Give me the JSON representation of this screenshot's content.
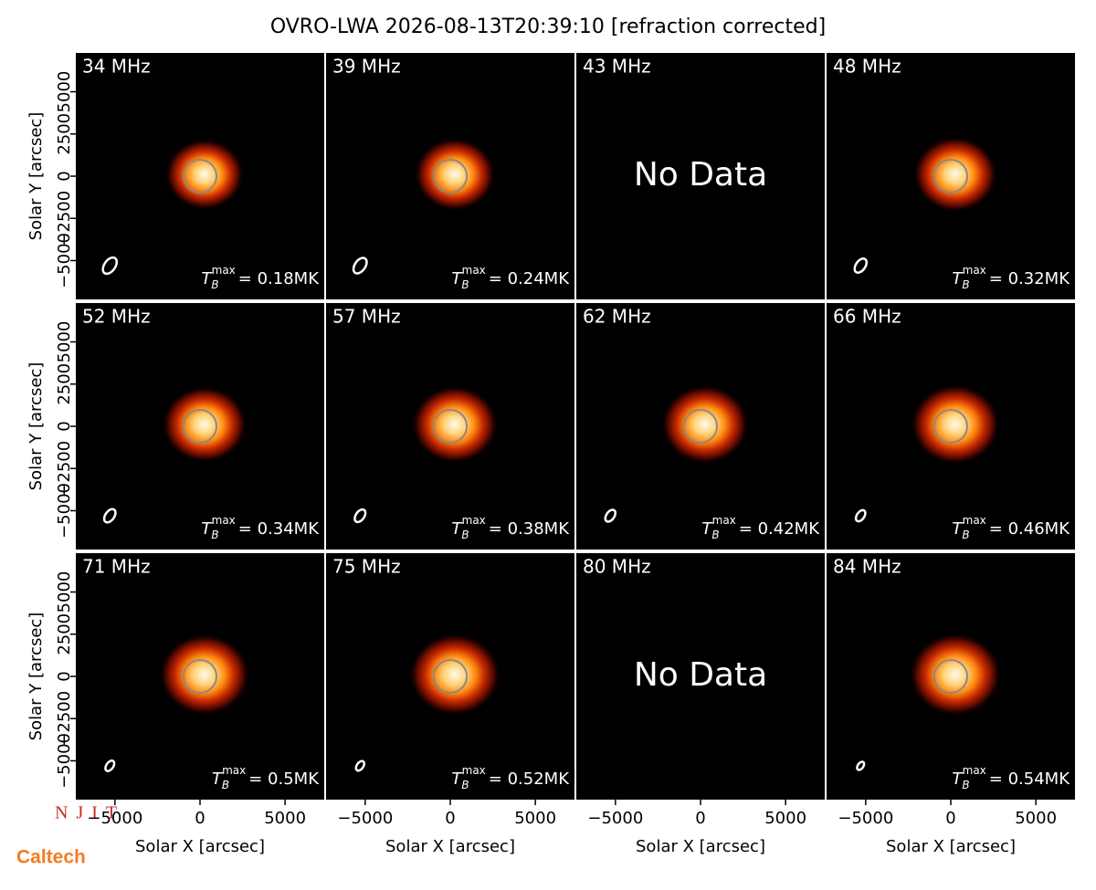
{
  "chart_data": {
    "type": "image-grid",
    "title": "OVRO-LWA 2026-08-13T20:39:10 [refraction corrected]",
    "xlabel": "Solar X [arcsec]",
    "ylabel": "Solar Y [arcsec]",
    "categories": [
      "34 MHz",
      "39 MHz",
      "43 MHz",
      "48 MHz",
      "52 MHz",
      "57 MHz",
      "62 MHz",
      "66 MHz",
      "71 MHz",
      "75 MHz",
      "80 MHz",
      "84 MHz"
    ],
    "values": [
      0.18,
      0.24,
      null,
      0.32,
      0.34,
      0.38,
      0.42,
      0.46,
      0.5,
      0.52,
      null,
      0.54
    ],
    "value_labels": [
      "= 0.18MK",
      "= 0.24MK",
      null,
      "= 0.32MK",
      "= 0.34MK",
      "= 0.38MK",
      "= 0.42MK",
      "= 0.46MK",
      "= 0.5MK",
      "= 0.52MK",
      null,
      "= 0.54MK"
    ],
    "tb_symbol": "T",
    "tb_subscript": "B",
    "tb_superscript": "max",
    "no_data_label": "No Data",
    "xlim": [
      -7300,
      7300
    ],
    "xticks": [
      {
        "value": -5000,
        "label": "−5000"
      },
      0,
      5000
    ],
    "ylim": [
      -7300,
      7300
    ],
    "yticks": [
      {
        "value": -5000,
        "label": "−5000"
      },
      {
        "value": -2500,
        "label": "−2500"
      },
      0,
      2500,
      5000
    ],
    "logos": [
      "NJIT",
      "Caltech"
    ]
  }
}
